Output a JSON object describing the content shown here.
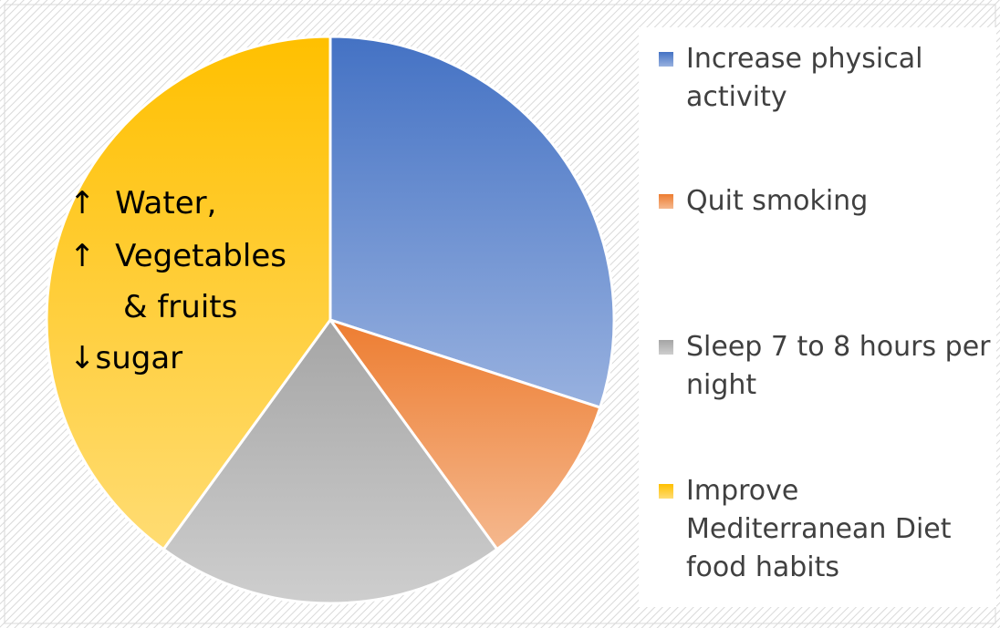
{
  "chart_data": {
    "type": "pie",
    "categories": [
      "Increase physical activity",
      "Quit smoking",
      "Sleep 7 to 8 hours per night",
      "Improve Mediterranean Diet food habits"
    ],
    "values": [
      30,
      10,
      20,
      40
    ],
    "colors": [
      "#4472c4",
      "#ed7d31",
      "#a5a5a5",
      "#ffc000"
    ],
    "annotation": [
      "↑  Water,",
      "↑  Vegetables",
      "& fruits",
      "↓sugar"
    ],
    "legend": "right"
  }
}
